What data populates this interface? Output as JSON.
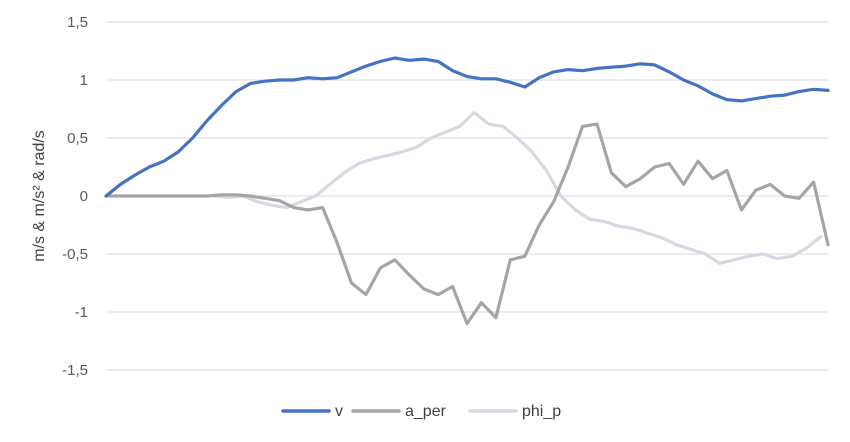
{
  "chart_data": {
    "type": "line",
    "title": "",
    "xlabel": "",
    "ylabel": "m/s & m/s² & rad/s",
    "ylim": [
      -1.5,
      1.5
    ],
    "yticks": [
      {
        "value": 1.5,
        "label": "1,5"
      },
      {
        "value": 1,
        "label": "1"
      },
      {
        "value": 0.5,
        "label": "0,5"
      },
      {
        "value": 0,
        "label": "0"
      },
      {
        "value": -0.5,
        "label": "-0,5"
      },
      {
        "value": -1,
        "label": "-1"
      },
      {
        "value": -1.5,
        "label": "-1,5"
      }
    ],
    "xlim": [
      0,
      100
    ],
    "grid": true,
    "legend_position": "bottom",
    "series": [
      {
        "name": "v",
        "color": "#4472c4",
        "x": [
          0,
          2,
          4,
          6,
          8,
          10,
          12,
          14,
          16,
          18,
          20,
          22,
          24,
          26,
          28,
          30,
          32,
          34,
          36,
          38,
          40,
          42,
          44,
          46,
          48,
          50,
          52,
          54,
          56,
          58,
          60,
          62,
          64,
          66,
          68,
          70,
          72,
          74,
          76,
          78,
          80,
          82,
          84,
          86,
          88,
          90,
          92,
          94,
          96,
          98,
          100
        ],
        "values": [
          0.0,
          0.1,
          0.18,
          0.25,
          0.3,
          0.38,
          0.5,
          0.65,
          0.78,
          0.9,
          0.97,
          0.99,
          1.0,
          1.0,
          1.02,
          1.01,
          1.02,
          1.07,
          1.12,
          1.16,
          1.19,
          1.17,
          1.18,
          1.16,
          1.08,
          1.03,
          1.01,
          1.01,
          0.98,
          0.94,
          1.02,
          1.07,
          1.09,
          1.08,
          1.1,
          1.11,
          1.12,
          1.14,
          1.13,
          1.07,
          1.0,
          0.95,
          0.88,
          0.83,
          0.82,
          0.84,
          0.86,
          0.87,
          0.9,
          0.92,
          0.91
        ]
      },
      {
        "name": "a_per",
        "color": "#a5a5a5",
        "x": [
          0,
          2,
          4,
          6,
          8,
          10,
          12,
          14,
          16,
          18,
          20,
          22,
          24,
          26,
          28,
          30,
          32,
          34,
          36,
          38,
          40,
          42,
          44,
          46,
          48,
          50,
          52,
          54,
          56,
          58,
          60,
          62,
          64,
          66,
          68,
          70,
          72,
          74,
          76,
          78,
          80,
          82,
          84,
          86,
          88,
          90,
          92,
          94,
          96,
          98,
          100
        ],
        "values": [
          0.0,
          0.0,
          0.0,
          0.0,
          0.0,
          0.0,
          0.0,
          0.0,
          0.01,
          0.01,
          0.0,
          -0.02,
          -0.04,
          -0.1,
          -0.12,
          -0.1,
          -0.4,
          -0.75,
          -0.85,
          -0.62,
          -0.55,
          -0.68,
          -0.8,
          -0.85,
          -0.78,
          -1.1,
          -0.92,
          -1.05,
          -0.55,
          -0.52,
          -0.25,
          -0.05,
          0.25,
          0.6,
          0.62,
          0.2,
          0.08,
          0.15,
          0.25,
          0.28,
          0.1,
          0.3,
          0.15,
          0.22,
          -0.12,
          0.05,
          0.1,
          0.0,
          -0.02,
          0.12,
          -0.42
        ]
      },
      {
        "name": "phi_p",
        "color": "#d4d9e3",
        "x": [
          15,
          17,
          19,
          21,
          23,
          25,
          27,
          29,
          31,
          33,
          35,
          37,
          39,
          41,
          43,
          45,
          47,
          49,
          51,
          53,
          55,
          57,
          59,
          61,
          63,
          65,
          67,
          69,
          71,
          73,
          75,
          77,
          79,
          81,
          83,
          85,
          87,
          89,
          91,
          93,
          95,
          97,
          99
        ],
        "values": [
          0.0,
          -0.01,
          0.0,
          -0.05,
          -0.08,
          -0.1,
          -0.05,
          0.0,
          0.1,
          0.2,
          0.28,
          0.32,
          0.35,
          0.38,
          0.42,
          0.5,
          0.55,
          0.6,
          0.72,
          0.62,
          0.6,
          0.5,
          0.38,
          0.22,
          0.0,
          -0.12,
          -0.2,
          -0.22,
          -0.26,
          -0.28,
          -0.32,
          -0.36,
          -0.42,
          -0.46,
          -0.5,
          -0.58,
          -0.55,
          -0.52,
          -0.5,
          -0.54,
          -0.52,
          -0.45,
          -0.35
        ]
      }
    ]
  }
}
